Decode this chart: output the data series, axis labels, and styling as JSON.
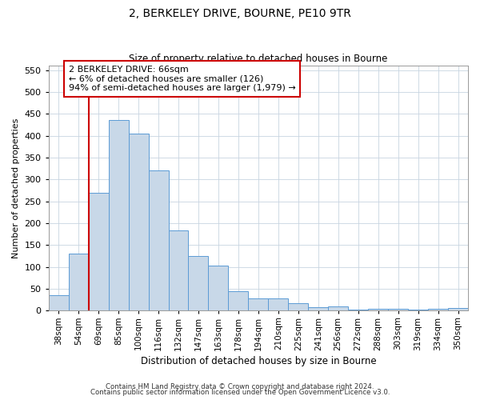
{
  "title": "2, BERKELEY DRIVE, BOURNE, PE10 9TR",
  "subtitle": "Size of property relative to detached houses in Bourne",
  "xlabel": "Distribution of detached houses by size in Bourne",
  "ylabel": "Number of detached properties",
  "categories": [
    "38sqm",
    "54sqm",
    "69sqm",
    "85sqm",
    "100sqm",
    "116sqm",
    "132sqm",
    "147sqm",
    "163sqm",
    "178sqm",
    "194sqm",
    "210sqm",
    "225sqm",
    "241sqm",
    "256sqm",
    "272sqm",
    "288sqm",
    "303sqm",
    "319sqm",
    "334sqm",
    "350sqm"
  ],
  "values": [
    35,
    130,
    270,
    435,
    405,
    320,
    183,
    125,
    103,
    45,
    28,
    28,
    17,
    8,
    10,
    3,
    4,
    4,
    3,
    5,
    6
  ],
  "bar_color": "#c8d8e8",
  "bar_edgecolor": "#5b9bd5",
  "vline_color": "#cc0000",
  "annotation_lines": [
    "2 BERKELEY DRIVE: 66sqm",
    "← 6% of detached houses are smaller (126)",
    "94% of semi-detached houses are larger (1,979) →"
  ],
  "annotation_box_color": "#cc0000",
  "ylim": [
    0,
    560
  ],
  "yticks": [
    0,
    50,
    100,
    150,
    200,
    250,
    300,
    350,
    400,
    450,
    500,
    550
  ],
  "footer1": "Contains HM Land Registry data © Crown copyright and database right 2024.",
  "footer2": "Contains public sector information licensed under the Open Government Licence v3.0.",
  "bg_color": "#ffffff",
  "grid_color": "#c8d4e0"
}
